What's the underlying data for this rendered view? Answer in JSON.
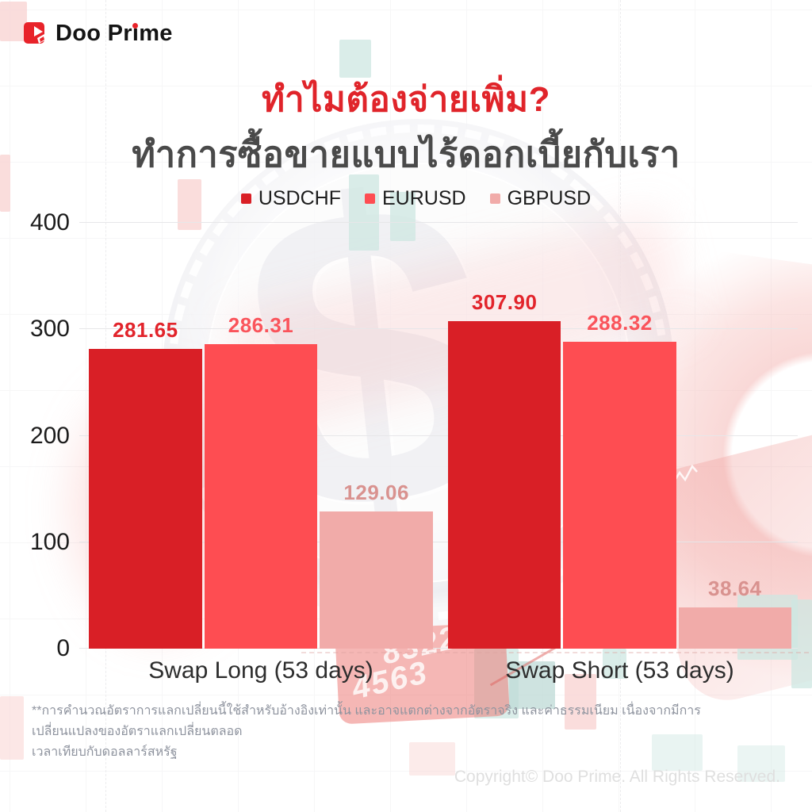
{
  "brand": {
    "name": "Doo Prime"
  },
  "header": {
    "title": "ทำไมต้องจ่ายเพิ่ม?",
    "subtitle": "ทำการซื้อขายแบบไร้ดอกเบี้ยกับเรา",
    "title_color": "#E0242A",
    "subtitle_color": "#4A4A4A"
  },
  "chart_data": {
    "type": "bar",
    "categories": [
      "Swap Long (53 days)",
      "Swap Short (53 days)"
    ],
    "series": [
      {
        "name": "USDCHF",
        "color": "#D91F26",
        "label_color": "#E2242B",
        "values": [
          281.65,
          307.9
        ]
      },
      {
        "name": "EURUSD",
        "color": "#FE4D52",
        "label_color": "#FA545B",
        "values": [
          286.31,
          288.32
        ]
      },
      {
        "name": "GBPUSD",
        "color": "#F1ABA9",
        "label_color": "#D9928F",
        "values": [
          129.06,
          38.64
        ]
      }
    ],
    "ylim": [
      0,
      400
    ],
    "yticks": [
      0,
      100,
      200,
      300,
      400
    ],
    "grid": true,
    "legend_position": "top"
  },
  "background": {
    "watermark_numbers": [
      "8322",
      "4563"
    ],
    "coin_symbol": "$"
  },
  "footnote": {
    "line1": "**การคำนวณอัตราการแลกเปลี่ยนนี้ใช้สำหรับอ้างอิงเท่านั้น และอาจแตกต่างจากอัตราจริง และค่าธรรมเนียม เนื่องจากมีการเปลี่ยนแปลงของอัตราแลกเปลี่ยนตลอด",
    "line2": "เวลาเทียบกับดอลลาร์สหรัฐ"
  },
  "footer": {
    "copyright": "Copyright© Doo Prime. All Rights Reserved."
  }
}
